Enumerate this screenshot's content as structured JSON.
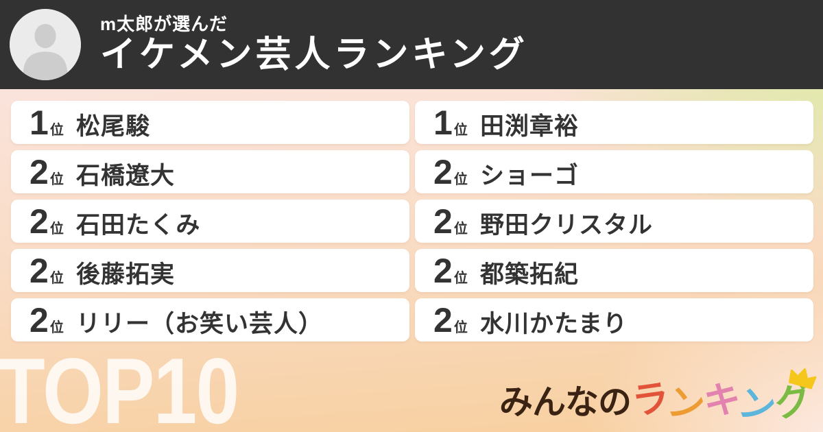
{
  "header": {
    "subtitle": "m太郎が選んだ",
    "title": "イケメン芸人ランキング",
    "avatar": "default-person-placeholder"
  },
  "ranking": {
    "rank_suffix": "位",
    "columns": [
      {
        "items": [
          {
            "rank": "1",
            "name": "松尾駿"
          },
          {
            "rank": "2",
            "name": "石橋遼大"
          },
          {
            "rank": "2",
            "name": "石田たくみ"
          },
          {
            "rank": "2",
            "name": "後藤拓実"
          },
          {
            "rank": "2",
            "name": "リリー（お笑い芸人）"
          }
        ]
      },
      {
        "items": [
          {
            "rank": "1",
            "name": "田渕章裕"
          },
          {
            "rank": "2",
            "name": "ショーゴ"
          },
          {
            "rank": "2",
            "name": "野田クリスタル"
          },
          {
            "rank": "2",
            "name": "都築拓紀"
          },
          {
            "rank": "2",
            "name": "水川かたまり"
          }
        ]
      }
    ]
  },
  "footer": {
    "badge": "TOP10"
  },
  "logo": {
    "prefix": "みんなの",
    "prefix_color": "#3a2312",
    "colored": [
      {
        "char": "ラ",
        "color": "#e2543a"
      },
      {
        "char": "ン",
        "color": "#ed9b33"
      },
      {
        "char": "キ",
        "color": "#e282ae"
      },
      {
        "char": "ン",
        "color": "#5cb5da"
      },
      {
        "char": "グ",
        "color": "#7cbb43"
      }
    ],
    "crown_color": "#f5c71c"
  },
  "colors": {
    "header_bg": "#323232",
    "header_text": "#ffffff",
    "card_bg": "#ffffff",
    "card_text": "#333333",
    "bg_green": "#d6ec9a",
    "bg_pink_top": "#fbe7e6",
    "bg_orange_bottom": "#f8cf9e",
    "bg_pink_bottom": "#fdebe6",
    "top10_text": "rgba(255,255,255,0.82)",
    "avatar_bg": "#ebebeb",
    "avatar_silhouette": "#cdcdcd"
  }
}
